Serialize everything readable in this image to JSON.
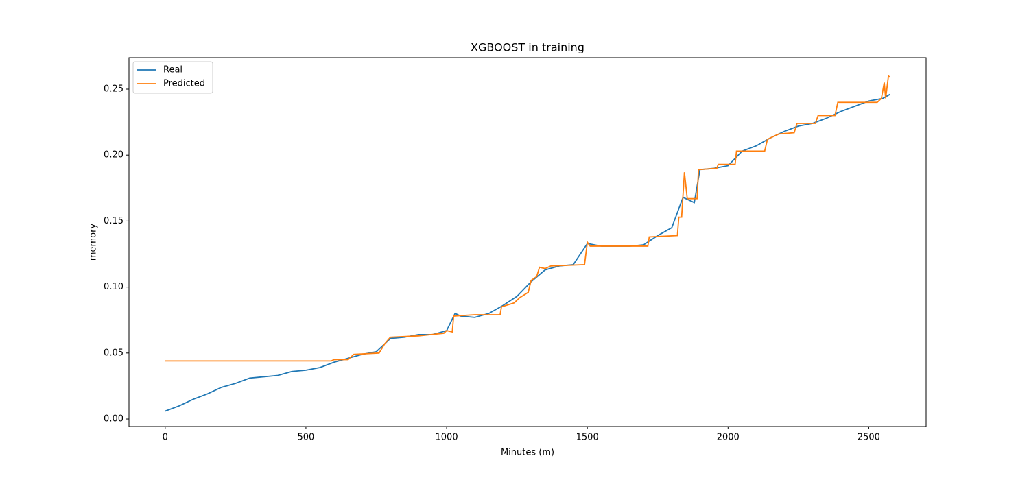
{
  "chart_data": {
    "type": "line",
    "title": "XGBOOST in training",
    "xlabel": "Minutes (m)",
    "ylabel": "memory",
    "legend": "upper left",
    "xlim": [
      -128.75,
      2703.75
    ],
    "ylim": [
      -0.0057,
      0.2739
    ],
    "xticks": [
      0,
      500,
      1000,
      1500,
      2000,
      2500
    ],
    "yticks": [
      {
        "value": 0,
        "label": "0.00"
      },
      {
        "value": 0.05,
        "label": "0.05"
      },
      {
        "value": 0.1,
        "label": "0.10"
      },
      {
        "value": 0.15,
        "label": "0.15"
      },
      {
        "value": 0.2,
        "label": "0.20"
      },
      {
        "value": 0.25,
        "label": "0.25"
      }
    ],
    "series": [
      {
        "name": "Real",
        "color": "#1f77b4",
        "x": [
          0,
          50,
          100,
          150,
          200,
          250,
          300,
          350,
          400,
          450,
          500,
          550,
          600,
          650,
          700,
          750,
          800,
          850,
          900,
          950,
          1000,
          1030,
          1050,
          1100,
          1150,
          1200,
          1250,
          1300,
          1350,
          1400,
          1450,
          1500,
          1550,
          1600,
          1650,
          1700,
          1750,
          1800,
          1840,
          1880,
          1900,
          1950,
          2000,
          2050,
          2100,
          2150,
          2200,
          2250,
          2300,
          2350,
          2400,
          2450,
          2500,
          2550,
          2575
        ],
        "values": [
          0.006,
          0.01,
          0.015,
          0.019,
          0.024,
          0.027,
          0.031,
          0.032,
          0.033,
          0.036,
          0.037,
          0.039,
          0.043,
          0.046,
          0.049,
          0.051,
          0.061,
          0.062,
          0.064,
          0.064,
          0.067,
          0.08,
          0.078,
          0.077,
          0.08,
          0.086,
          0.093,
          0.104,
          0.113,
          0.116,
          0.117,
          0.133,
          0.131,
          0.131,
          0.131,
          0.132,
          0.139,
          0.145,
          0.168,
          0.164,
          0.189,
          0.19,
          0.192,
          0.203,
          0.207,
          0.213,
          0.218,
          0.222,
          0.224,
          0.228,
          0.233,
          0.237,
          0.241,
          0.243,
          0.246
        ]
      },
      {
        "name": "Predicted",
        "color": "#ff7f0e",
        "x": [
          0,
          590,
          600,
          650,
          670,
          760,
          780,
          800,
          900,
          990,
          1000,
          1020,
          1025,
          1100,
          1190,
          1195,
          1240,
          1260,
          1290,
          1300,
          1320,
          1330,
          1350,
          1370,
          1490,
          1500,
          1510,
          1715,
          1720,
          1820,
          1825,
          1835,
          1845,
          1855,
          1890,
          1895,
          1960,
          1965,
          2025,
          2030,
          2130,
          2140,
          2180,
          2235,
          2245,
          2310,
          2320,
          2380,
          2390,
          2440,
          2530,
          2545,
          2555,
          2560,
          2570,
          2575
        ],
        "values": [
          0.044,
          0.044,
          0.045,
          0.045,
          0.049,
          0.05,
          0.057,
          0.062,
          0.063,
          0.065,
          0.067,
          0.066,
          0.078,
          0.079,
          0.079,
          0.085,
          0.088,
          0.092,
          0.096,
          0.105,
          0.108,
          0.115,
          0.114,
          0.116,
          0.117,
          0.134,
          0.131,
          0.131,
          0.138,
          0.139,
          0.153,
          0.153,
          0.187,
          0.167,
          0.167,
          0.189,
          0.19,
          0.193,
          0.193,
          0.203,
          0.203,
          0.212,
          0.216,
          0.217,
          0.224,
          0.224,
          0.23,
          0.23,
          0.24,
          0.24,
          0.24,
          0.243,
          0.255,
          0.243,
          0.26,
          0.259
        ]
      }
    ]
  }
}
